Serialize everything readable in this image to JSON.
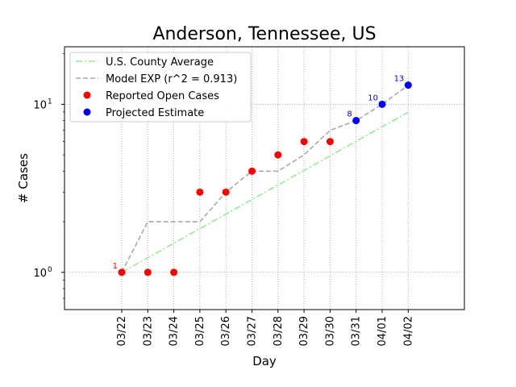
{
  "chart_data": {
    "type": "line",
    "title": "Anderson, Tennessee, US",
    "xlabel": "Day",
    "ylabel": "# Cases",
    "yscale": "log",
    "ylim": [
      0.6,
      22
    ],
    "grid": true,
    "legend_position": "top-left",
    "categories": [
      "03/22",
      "03/23",
      "03/24",
      "03/25",
      "03/26",
      "03/27",
      "03/28",
      "03/29",
      "03/30",
      "03/31",
      "04/01",
      "04/02"
    ],
    "y_ticks": [
      {
        "value": 1,
        "base": "10",
        "exp": "0"
      },
      {
        "value": 10,
        "base": "10",
        "exp": "1"
      }
    ],
    "series": [
      {
        "name": "U.S. County Average",
        "kind": "line",
        "style": "dashdot",
        "color": "#90ee90",
        "x": [
          "03/22",
          "03/23",
          "03/24",
          "03/25",
          "03/26",
          "03/27",
          "03/28",
          "03/29",
          "03/30",
          "03/31",
          "04/01",
          "04/02"
        ],
        "values": [
          1.0,
          1.22,
          1.49,
          1.82,
          2.22,
          2.71,
          3.31,
          4.04,
          4.93,
          6.02,
          7.35,
          8.97
        ]
      },
      {
        "name": "Model EXP (r^2 = 0.913)",
        "kind": "line",
        "style": "dashed",
        "color": "#a9a9a9",
        "x": [
          "03/22",
          "03/23",
          "03/24",
          "03/25",
          "03/26",
          "03/27",
          "03/28",
          "03/29",
          "03/30",
          "03/31",
          "04/01",
          "04/02"
        ],
        "values": [
          1,
          2,
          2,
          2,
          3,
          4,
          4,
          5,
          7,
          8,
          10,
          13
        ]
      },
      {
        "name": "Reported Open Cases",
        "kind": "scatter",
        "color": "#ff0000",
        "x": [
          "03/22",
          "03/23",
          "03/24",
          "03/25",
          "03/26",
          "03/27",
          "03/28",
          "03/29",
          "03/30"
        ],
        "values": [
          1,
          1,
          1,
          3,
          3,
          4,
          5,
          6,
          6
        ]
      },
      {
        "name": "Projected Estimate",
        "kind": "scatter",
        "color": "#0000ff",
        "x": [
          "03/31",
          "04/01",
          "04/02"
        ],
        "values": [
          8,
          10,
          13
        ]
      }
    ],
    "annotations": [
      {
        "text": "1",
        "x": "03/22",
        "y": 1,
        "color": "#ff0000"
      },
      {
        "text": "8",
        "x": "03/31",
        "y": 8,
        "color": "#0000ff"
      },
      {
        "text": "10",
        "x": "04/01",
        "y": 10,
        "color": "#0000ff"
      },
      {
        "text": "13",
        "x": "04/02",
        "y": 13,
        "color": "#0000ff"
      }
    ]
  }
}
